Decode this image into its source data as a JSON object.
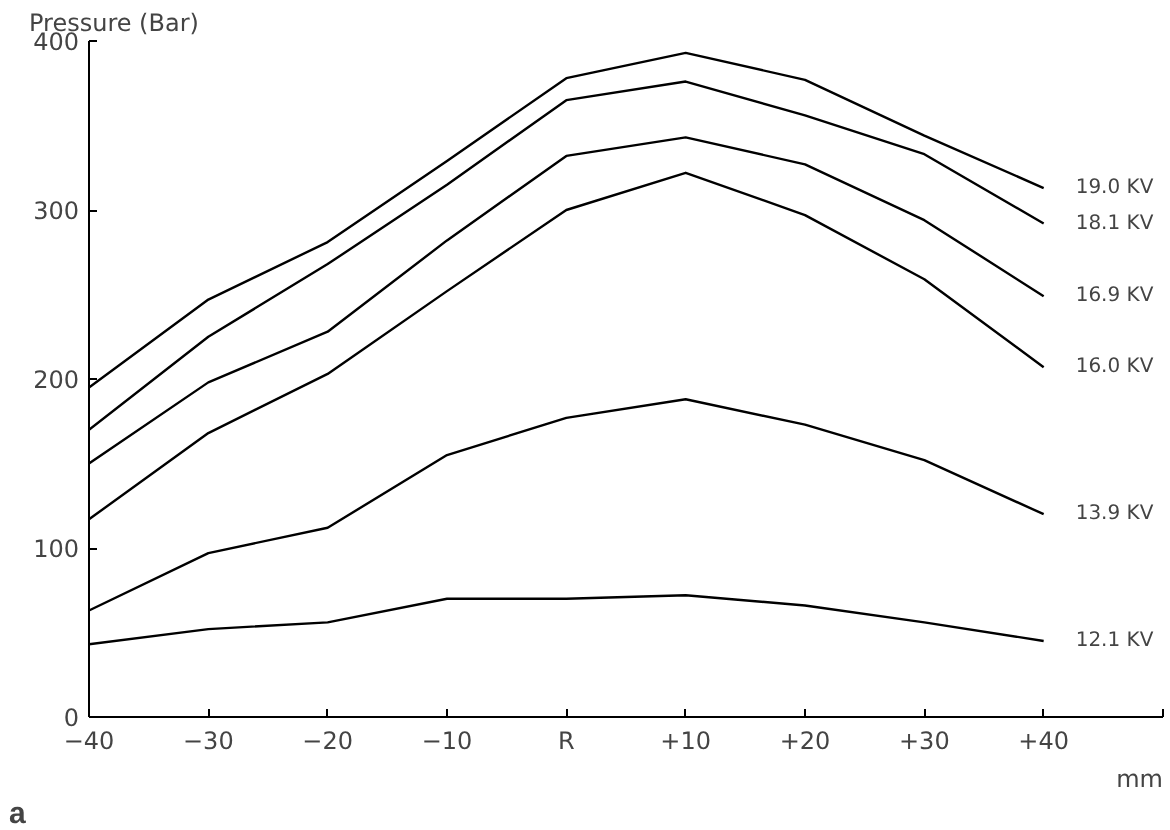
{
  "chart_data": {
    "type": "line",
    "ylabel": "Pressure (Bar)",
    "xlabel": "mm",
    "annotations": [
      "a"
    ],
    "x": [
      -40,
      -30,
      -20,
      -10,
      0,
      10,
      20,
      30,
      40
    ],
    "xlim": [
      -40,
      50
    ],
    "xticks": [
      -40,
      -30,
      -20,
      -10,
      {
        "value": 0,
        "label": "R"
      },
      {
        "value": 10,
        "label": "+10"
      },
      {
        "value": 20,
        "label": "+20"
      },
      {
        "value": 30,
        "label": "+30"
      },
      {
        "value": 40,
        "label": "+40"
      },
      {
        "value": 50,
        "label": null
      }
    ],
    "ylim": [
      0,
      400
    ],
    "yticks": [
      0,
      100,
      200,
      300,
      400
    ],
    "grid": false,
    "legend": false,
    "marker": "none",
    "line_style": "solid",
    "series": [
      {
        "name": "19.0 KV",
        "color": "#000000",
        "values": [
          195,
          247,
          281,
          329,
          378,
          393,
          377,
          344,
          313
        ]
      },
      {
        "name": "18.1 KV",
        "color": "#000000",
        "values": [
          170,
          225,
          268,
          315,
          365,
          376,
          356,
          333,
          292
        ]
      },
      {
        "name": "16.9 KV",
        "color": "#000000",
        "values": [
          150,
          198,
          228,
          282,
          332,
          343,
          327,
          294,
          249
        ]
      },
      {
        "name": "16.0 KV",
        "color": "#000000",
        "values": [
          117,
          168,
          203,
          252,
          300,
          322,
          297,
          259,
          207
        ]
      },
      {
        "name": "13.9 KV",
        "color": "#000000",
        "values": [
          63,
          97,
          112,
          155,
          177,
          188,
          173,
          152,
          120
        ]
      },
      {
        "name": "12.1 KV",
        "color": "#000000",
        "values": [
          43,
          52,
          56,
          70,
          70,
          72,
          66,
          56,
          45
        ]
      }
    ]
  }
}
